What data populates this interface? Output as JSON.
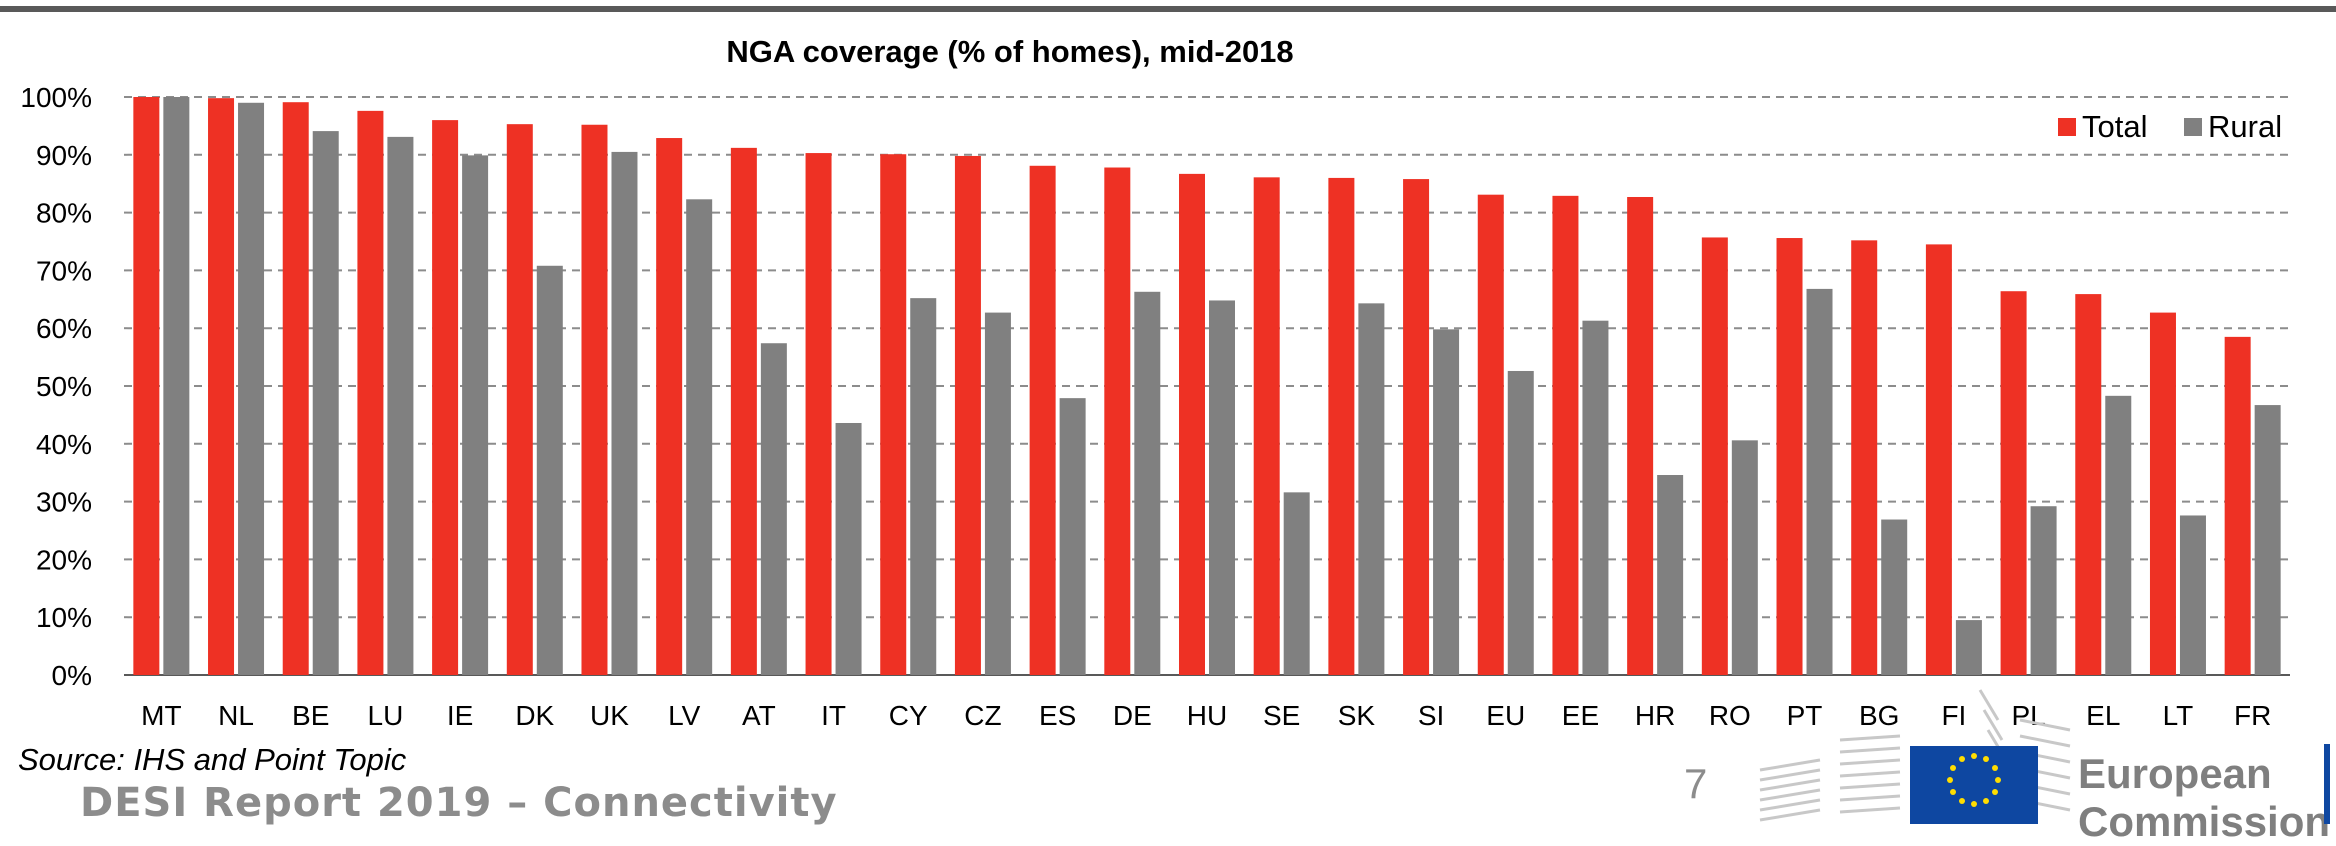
{
  "chart_data": {
    "type": "bar",
    "title": "NGA coverage (% of homes), mid-2018",
    "xlabel": "",
    "ylabel": "",
    "categories": [
      "MT",
      "NL",
      "BE",
      "LU",
      "IE",
      "DK",
      "UK",
      "LV",
      "AT",
      "IT",
      "CY",
      "CZ",
      "ES",
      "DE",
      "HU",
      "SE",
      "SK",
      "SI",
      "EU",
      "EE",
      "HR",
      "RO",
      "PT",
      "BG",
      "FI",
      "PL",
      "EL",
      "LT",
      "FR"
    ],
    "series": [
      {
        "name": "Total",
        "color": "#ee3124",
        "values": [
          100,
          99.8,
          99.1,
          97.6,
          96.0,
          95.3,
          95.2,
          92.9,
          91.2,
          90.3,
          90.1,
          89.8,
          88.1,
          87.8,
          86.7,
          86.1,
          86.0,
          85.8,
          83.1,
          82.9,
          82.7,
          75.7,
          75.6,
          75.2,
          74.5,
          66.4,
          65.9,
          62.7,
          58.5
        ]
      },
      {
        "name": "Rural",
        "color": "#808080",
        "values": [
          100,
          99.0,
          94.1,
          93.1,
          89.9,
          70.8,
          90.5,
          82.3,
          57.4,
          43.6,
          65.2,
          62.7,
          47.9,
          66.3,
          64.8,
          31.6,
          64.3,
          59.8,
          52.6,
          61.3,
          34.6,
          40.6,
          66.8,
          26.9,
          9.5,
          29.2,
          48.3,
          27.6,
          46.7
        ]
      }
    ],
    "ylim": [
      0,
      100
    ],
    "yticks": [
      "0%",
      "10%",
      "20%",
      "30%",
      "40%",
      "50%",
      "60%",
      "70%",
      "80%",
      "90%",
      "100%"
    ],
    "grid": "horizontal dashed",
    "legend_position": "top-right"
  },
  "footer": {
    "source": "Source: IHS and Point Topic",
    "report_title": "DESI Report 2019 – Connectivity",
    "page_number": "7",
    "logo_text_line1": "European",
    "logo_text_line2": "Commission"
  }
}
